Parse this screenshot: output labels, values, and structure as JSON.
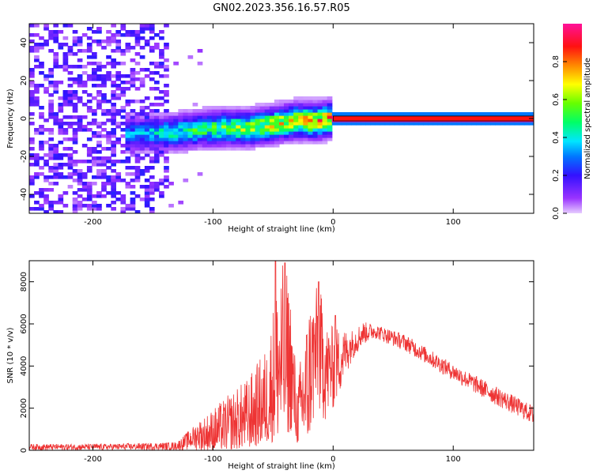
{
  "title": "GN02.2023.356.16.57.R05",
  "chart_data": [
    {
      "type": "heatmap",
      "xlabel": "Height of straight line (km)",
      "ylabel": "Frequency (Hz)",
      "xlim": [
        -253,
        167
      ],
      "ylim": [
        -50,
        50
      ],
      "xticks": [
        -200,
        -100,
        0,
        100
      ],
      "yticks": [
        -40,
        -20,
        0,
        20,
        40
      ],
      "colorbar": {
        "label": "Normalized spectral amplitude",
        "range": [
          0,
          1
        ],
        "ticks": [
          0.0,
          0.2,
          0.4,
          0.6,
          0.8
        ],
        "colormap": "rainbow (purple-blue-cyan-green-yellow-red-magenta)"
      },
      "features": {
        "noise_region_x": [
          -253,
          -135
        ],
        "ridge_center_hz": [
          {
            "x": -170,
            "y": -8
          },
          {
            "x": -130,
            "y": -7
          },
          {
            "x": -100,
            "y": -5
          },
          {
            "x": -70,
            "y": -5
          },
          {
            "x": -50,
            "y": -3
          },
          {
            "x": -30,
            "y": -1
          },
          {
            "x": -15,
            "y": -1.5
          },
          {
            "x": 0,
            "y": 0
          },
          {
            "x": 167,
            "y": 0
          }
        ],
        "steady_tone": {
          "x_range": [
            0,
            167
          ],
          "frequency_hz": 0,
          "amplitude": 1.0
        }
      }
    },
    {
      "type": "line",
      "xlabel": "Height of straight line (km)",
      "ylabel": "SNR (10 * v/v)",
      "xlim": [
        -253,
        167
      ],
      "ylim": [
        0,
        9000
      ],
      "xticks": [
        -200,
        -100,
        0,
        100
      ],
      "yticks": [
        0,
        2000,
        4000,
        6000,
        8000
      ],
      "color": "#ee3333",
      "envelope": {
        "x": [
          -253,
          -200,
          -150,
          -130,
          -110,
          -90,
          -70,
          -55,
          -45,
          -40,
          -35,
          -30,
          -25,
          -20,
          -12,
          -5,
          5,
          15,
          25,
          35,
          60,
          100,
          130,
          167
        ],
        "low": [
          0,
          0,
          0,
          0,
          0,
          0,
          100,
          300,
          500,
          600,
          900,
          300,
          300,
          200,
          1500,
          1200,
          2500,
          4200,
          5000,
          5300,
          4700,
          3300,
          2300,
          1200
        ],
        "high": [
          300,
          300,
          350,
          400,
          1500,
          2500,
          3500,
          5000,
          8800,
          8900,
          7500,
          3000,
          5500,
          7000,
          8000,
          6000,
          5800,
          5700,
          6100,
          6000,
          5500,
          4100,
          3200,
          2100
        ]
      },
      "peaks": [
        {
          "x": -48,
          "y": 9000
        },
        {
          "x": -40,
          "y": 8900
        },
        {
          "x": -12,
          "y": 8000
        },
        {
          "x": 2,
          "y": 6400
        }
      ]
    }
  ]
}
